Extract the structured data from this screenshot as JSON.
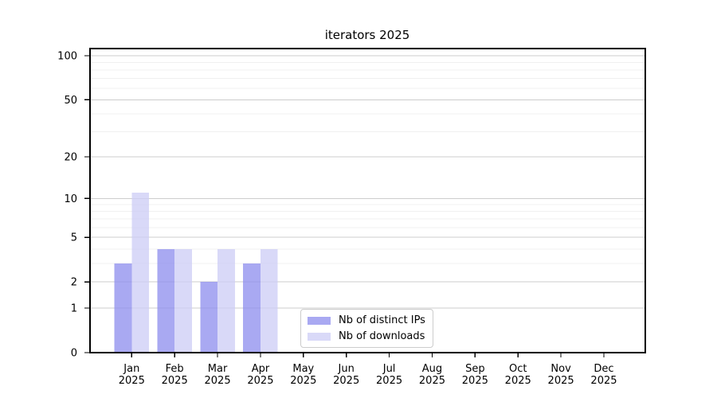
{
  "chart_data": {
    "type": "bar",
    "title": "iterators 2025",
    "categories": [
      "Jan",
      "Feb",
      "Mar",
      "Apr",
      "May",
      "Jun",
      "Jul",
      "Aug",
      "Sep",
      "Oct",
      "Nov",
      "Dec"
    ],
    "category_year": "2025",
    "series": [
      {
        "name": "Nb of distinct IPs",
        "color": "#8c8cee",
        "values": [
          3,
          4,
          2,
          3,
          0,
          0,
          0,
          0,
          0,
          0,
          0,
          0
        ]
      },
      {
        "name": "Nb of downloads",
        "color": "#ccccf5",
        "values": [
          11,
          4,
          4,
          4,
          0,
          0,
          0,
          0,
          0,
          0,
          0,
          0
        ]
      }
    ],
    "bar_opacity": 0.75,
    "y_scale": "log1p",
    "y_ticks": [
      0,
      1,
      2,
      5,
      10,
      20,
      50,
      100
    ],
    "y_minor_gridlines": [
      3,
      4,
      6,
      7,
      8,
      9,
      30,
      40,
      60,
      70,
      80,
      90
    ],
    "ylim": [
      0,
      112
    ],
    "xlabel": "",
    "ylabel": "",
    "grid": true,
    "legend": {
      "position": "inside-bottom-center"
    },
    "colors": {
      "background": "#ffffff",
      "axis": "#000000",
      "text": "#000000",
      "grid_major": "#cdcdcd",
      "grid_minor": "#f0f0f0"
    }
  }
}
